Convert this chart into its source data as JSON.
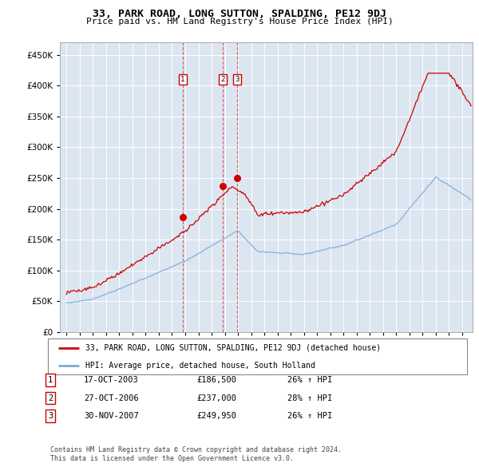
{
  "title": "33, PARK ROAD, LONG SUTTON, SPALDING, PE12 9DJ",
  "subtitle": "Price paid vs. HM Land Registry's House Price Index (HPI)",
  "ytick_values": [
    0,
    50000,
    100000,
    150000,
    200000,
    250000,
    300000,
    350000,
    400000,
    450000
  ],
  "ylim": [
    0,
    470000
  ],
  "sale_color": "#cc0000",
  "hpi_color": "#7aacda",
  "background_color": "#dce6f1",
  "transactions": [
    {
      "label": "1",
      "date": "17-OCT-2003",
      "price": 186500,
      "hpi_pct": "26%",
      "x_year": 2003.8
    },
    {
      "label": "2",
      "date": "27-OCT-2006",
      "price": 237000,
      "hpi_pct": "28%",
      "x_year": 2006.82
    },
    {
      "label": "3",
      "date": "30-NOV-2007",
      "price": 249950,
      "hpi_pct": "26%",
      "x_year": 2007.92
    }
  ],
  "legend_line1": "33, PARK ROAD, LONG SUTTON, SPALDING, PE12 9DJ (detached house)",
  "legend_line2": "HPI: Average price, detached house, South Holland",
  "footnote1": "Contains HM Land Registry data © Crown copyright and database right 2024.",
  "footnote2": "This data is licensed under the Open Government Licence v3.0.",
  "xlim_left": 1994.5,
  "xlim_right": 2025.8,
  "xtick_start": 1995,
  "xtick_end": 2025
}
